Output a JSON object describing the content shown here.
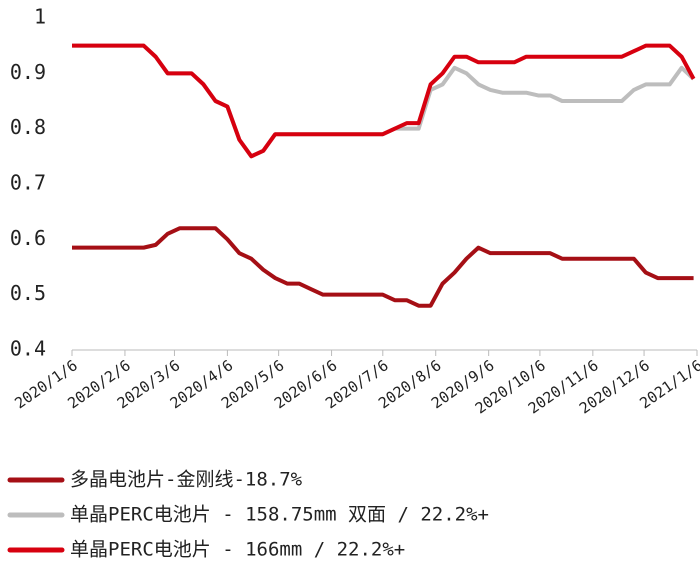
{
  "chart_data": {
    "type": "line",
    "x": [
      "2020/1/6",
      "2020/1/13",
      "2020/1/20",
      "2020/1/27",
      "2020/2/3",
      "2020/2/10",
      "2020/2/17",
      "2020/2/24",
      "2020/3/2",
      "2020/3/9",
      "2020/3/16",
      "2020/3/23",
      "2020/3/30",
      "2020/4/6",
      "2020/4/13",
      "2020/4/20",
      "2020/4/27",
      "2020/5/4",
      "2020/5/11",
      "2020/5/18",
      "2020/5/25",
      "2020/6/1",
      "2020/6/8",
      "2020/6/15",
      "2020/6/22",
      "2020/6/29",
      "2020/7/6",
      "2020/7/13",
      "2020/7/20",
      "2020/7/27",
      "2020/8/3",
      "2020/8/10",
      "2020/8/17",
      "2020/8/24",
      "2020/8/31",
      "2020/9/7",
      "2020/9/14",
      "2020/9/21",
      "2020/9/28",
      "2020/10/5",
      "2020/10/12",
      "2020/10/19",
      "2020/10/26",
      "2020/11/2",
      "2020/11/9",
      "2020/11/16",
      "2020/11/23",
      "2020/11/30",
      "2020/12/7",
      "2020/12/14",
      "2020/12/21",
      "2020/12/28",
      "2021/1/4"
    ],
    "series": [
      {
        "name": "多晶电池片-金刚线-18.7%",
        "color": "#a50f15",
        "values": [
          0.585,
          0.585,
          0.585,
          0.585,
          0.585,
          0.585,
          0.585,
          0.59,
          0.61,
          0.62,
          0.62,
          0.62,
          0.62,
          0.6,
          0.575,
          0.565,
          0.545,
          0.53,
          0.52,
          0.52,
          0.51,
          0.5,
          0.5,
          0.5,
          0.5,
          0.5,
          0.5,
          0.49,
          0.49,
          0.48,
          0.48,
          0.52,
          0.54,
          0.565,
          0.585,
          0.575,
          0.575,
          0.575,
          0.575,
          0.575,
          0.575,
          0.565,
          0.565,
          0.565,
          0.565,
          0.565,
          0.565,
          0.565,
          0.54,
          0.53,
          0.53,
          0.53,
          0.53
        ]
      },
      {
        "name": "单晶PERC电池片 - 158.75mm 双面 / 22.2%+",
        "color": "#bdbdbd",
        "values": [
          0.95,
          0.95,
          0.95,
          0.95,
          0.95,
          0.95,
          0.95,
          0.93,
          0.9,
          0.9,
          0.9,
          0.88,
          0.85,
          0.84,
          0.78,
          0.75,
          0.76,
          0.79,
          0.79,
          0.79,
          0.79,
          0.79,
          0.79,
          0.79,
          0.79,
          0.79,
          0.79,
          0.8,
          0.8,
          0.8,
          0.87,
          0.88,
          0.91,
          0.9,
          0.88,
          0.87,
          0.865,
          0.865,
          0.865,
          0.86,
          0.86,
          0.85,
          0.85,
          0.85,
          0.85,
          0.85,
          0.85,
          0.87,
          0.88,
          0.88,
          0.88,
          0.91,
          0.89
        ]
      },
      {
        "name": "单晶PERC电池片 - 166mm / 22.2%+",
        "color": "#d7000f",
        "values": [
          0.95,
          0.95,
          0.95,
          0.95,
          0.95,
          0.95,
          0.95,
          0.93,
          0.9,
          0.9,
          0.9,
          0.88,
          0.85,
          0.84,
          0.78,
          0.75,
          0.76,
          0.79,
          0.79,
          0.79,
          0.79,
          0.79,
          0.79,
          0.79,
          0.79,
          0.79,
          0.79,
          0.8,
          0.81,
          0.81,
          0.88,
          0.9,
          0.93,
          0.93,
          0.92,
          0.92,
          0.92,
          0.92,
          0.93,
          0.93,
          0.93,
          0.93,
          0.93,
          0.93,
          0.93,
          0.93,
          0.93,
          0.94,
          0.95,
          0.95,
          0.95,
          0.93,
          0.89
        ]
      }
    ],
    "xlim": [
      "2020/1/6",
      "2021/1/6"
    ],
    "xticks": [
      "2020/1/6",
      "2020/2/6",
      "2020/3/6",
      "2020/4/6",
      "2020/5/6",
      "2020/6/6",
      "2020/7/6",
      "2020/8/6",
      "2020/9/6",
      "2020/10/6",
      "2020/11/6",
      "2020/12/6",
      "2021/1/6"
    ],
    "ylim": [
      0.4,
      1
    ],
    "yticks": [
      0.4,
      0.5,
      0.6,
      0.7,
      0.8,
      0.9,
      1
    ],
    "legend": "bottom"
  }
}
